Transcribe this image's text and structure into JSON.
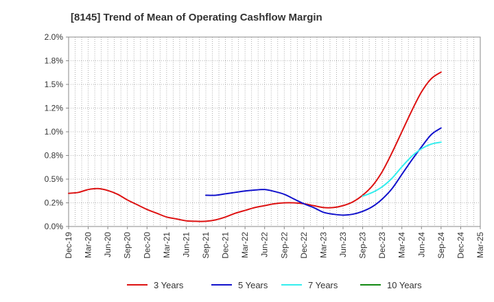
{
  "chart_data": {
    "type": "line",
    "title": "[8145]  Trend of Mean of Operating Cashflow Margin",
    "xlabel": "",
    "ylabel": "",
    "ylim": [
      0,
      2.0
    ],
    "y_ticks": [
      "0.0%",
      "0.2%",
      "0.5%",
      "0.8%",
      "1.0%",
      "1.2%",
      "1.5%",
      "1.8%",
      "2.0%"
    ],
    "y_tick_values": [
      0,
      0.25,
      0.5,
      0.75,
      1.0,
      1.25,
      1.5,
      1.75,
      2.0
    ],
    "x_ticks": [
      "Dec-19",
      "Mar-20",
      "Jun-20",
      "Sep-20",
      "Dec-20",
      "Mar-21",
      "Jun-21",
      "Sep-21",
      "Dec-21",
      "Mar-22",
      "Jun-22",
      "Sep-22",
      "Dec-22",
      "Mar-23",
      "Jun-23",
      "Sep-23",
      "Dec-23",
      "Mar-24",
      "Jun-24",
      "Sep-24",
      "Dec-24",
      "Mar-25"
    ],
    "x_tick_index": [
      0,
      1,
      2,
      3,
      4,
      5,
      6,
      7,
      8,
      9,
      10,
      11,
      12,
      13,
      14,
      15,
      16,
      17,
      18,
      19,
      20,
      21
    ],
    "series": [
      {
        "name": "3 Years",
        "color": "#dd1111",
        "x": [
          0,
          0.5,
          1,
          1.5,
          2,
          2.5,
          3,
          3.5,
          4,
          4.5,
          5,
          5.5,
          6,
          6.5,
          7,
          7.5,
          8,
          8.5,
          9,
          9.5,
          10,
          10.5,
          11,
          11.5,
          12,
          12.5,
          13,
          13.5,
          14,
          14.5,
          15,
          15.5,
          16,
          16.5,
          17,
          17.5,
          18,
          18.5,
          19
        ],
        "values": [
          0.35,
          0.36,
          0.39,
          0.4,
          0.38,
          0.34,
          0.28,
          0.23,
          0.18,
          0.14,
          0.1,
          0.08,
          0.06,
          0.055,
          0.055,
          0.07,
          0.1,
          0.14,
          0.17,
          0.2,
          0.22,
          0.24,
          0.25,
          0.25,
          0.24,
          0.22,
          0.2,
          0.2,
          0.22,
          0.26,
          0.33,
          0.43,
          0.58,
          0.78,
          1.0,
          1.22,
          1.42,
          1.56,
          1.63
        ]
      },
      {
        "name": "5 Years",
        "color": "#1111cc",
        "x": [
          7,
          7.5,
          8,
          8.5,
          9,
          9.5,
          10,
          10.5,
          11,
          11.5,
          12,
          12.5,
          13,
          13.5,
          14,
          14.5,
          15,
          15.5,
          16,
          16.5,
          17,
          17.5,
          18,
          18.5,
          19
        ],
        "values": [
          0.33,
          0.33,
          0.345,
          0.36,
          0.375,
          0.385,
          0.39,
          0.37,
          0.34,
          0.29,
          0.24,
          0.2,
          0.15,
          0.13,
          0.12,
          0.13,
          0.16,
          0.21,
          0.29,
          0.4,
          0.55,
          0.7,
          0.84,
          0.97,
          1.04
        ]
      },
      {
        "name": "7 Years",
        "color": "#33eeee",
        "x": [
          15,
          15.5,
          16,
          16.5,
          17,
          17.5,
          18,
          18.5,
          19
        ],
        "values": [
          0.32,
          0.36,
          0.42,
          0.51,
          0.63,
          0.74,
          0.82,
          0.87,
          0.89
        ]
      },
      {
        "name": "10 Years",
        "color": "#118811",
        "x": [],
        "values": []
      }
    ],
    "legend_position": "bottom",
    "grid": true
  }
}
